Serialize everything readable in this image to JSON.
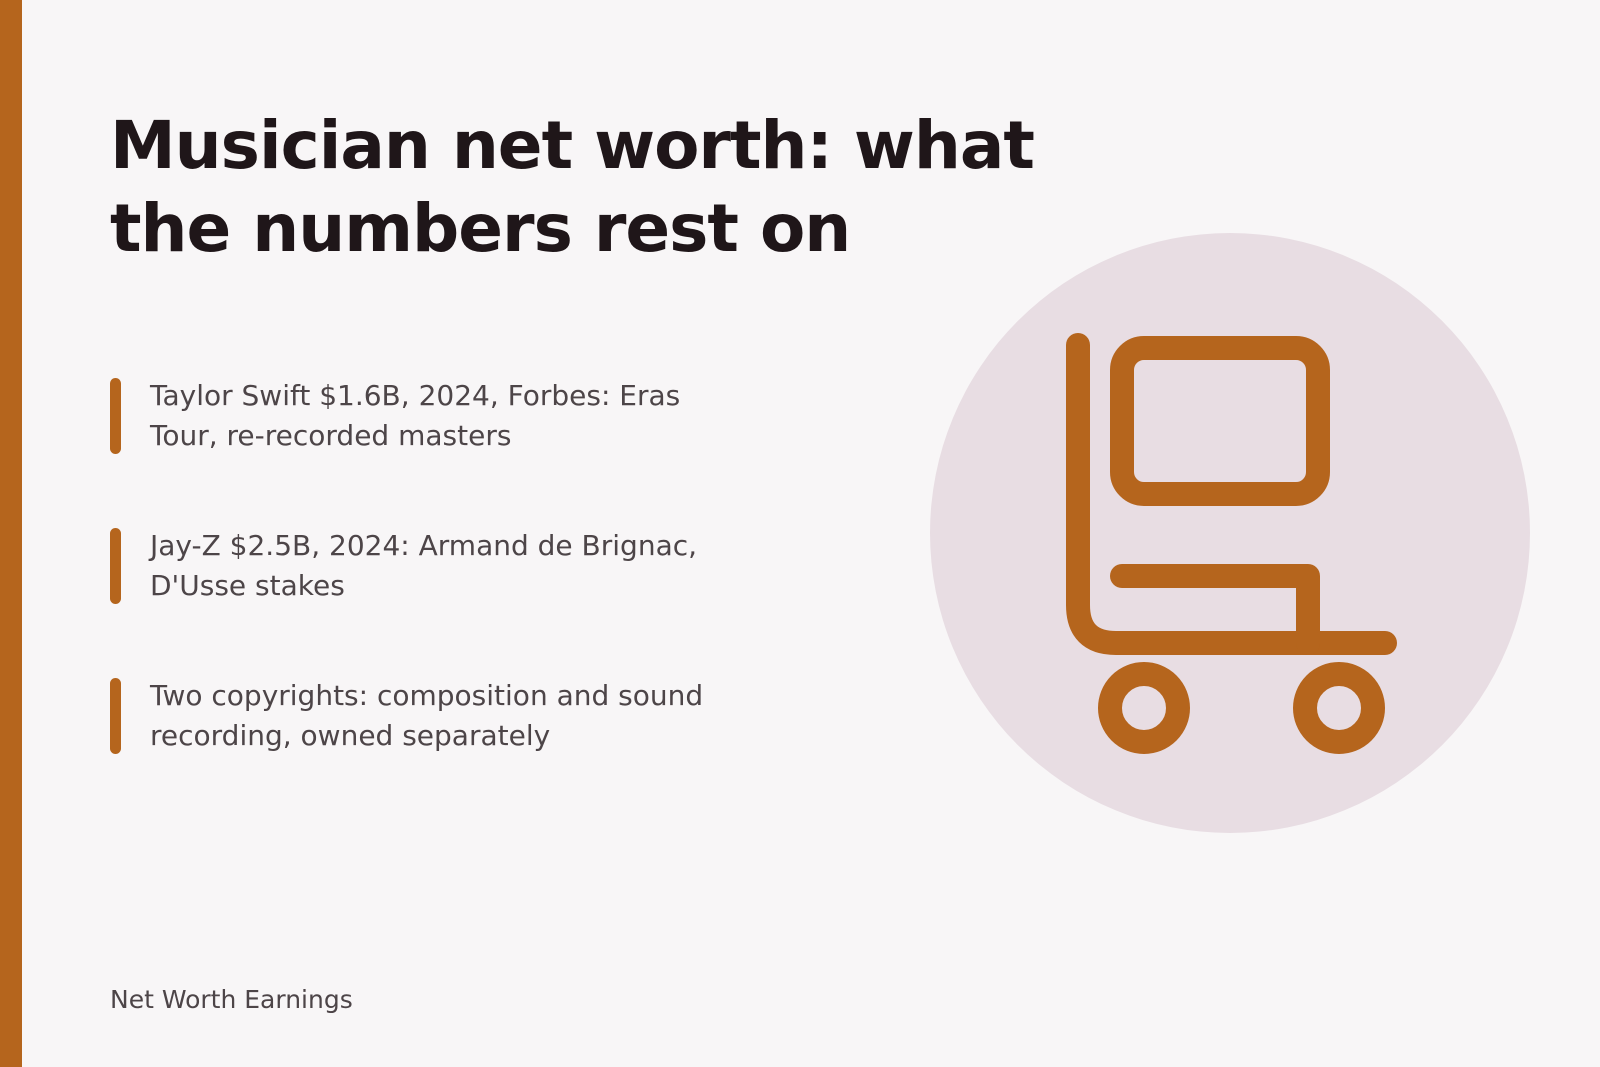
{
  "header": {
    "title": "Musician net worth: what the numbers rest on"
  },
  "facts": [
    {
      "text": "Taylor Swift $1.6B, 2024, Forbes: Eras Tour, re-recorded masters"
    },
    {
      "text": "Jay-Z $2.5B, 2024: Armand de Brignac, D'Usse stakes"
    },
    {
      "text": "Two copyrights: composition and sound recording, owned separately"
    }
  ],
  "illustration": {
    "icon": "hand-truck-icon",
    "accent_color": "#b5651d",
    "circle_color": "#e8dde3"
  },
  "footer": {
    "brand": "Net Worth Earnings"
  }
}
